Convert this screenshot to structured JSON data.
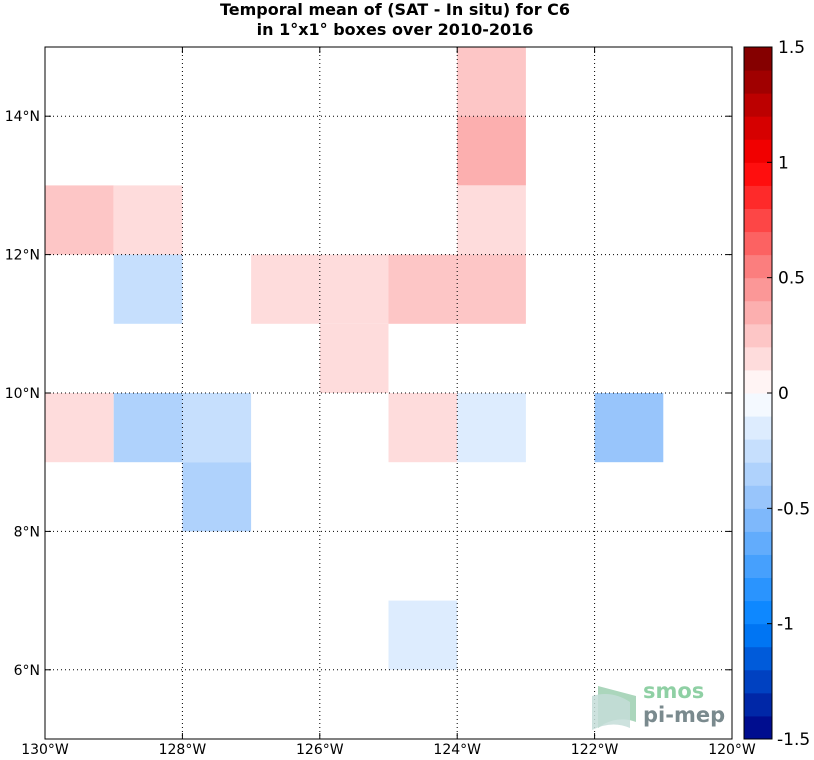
{
  "chart_data": {
    "type": "heatmap",
    "title_lines": [
      "Temporal mean of (SAT - In situ) for C6",
      "in 1°x1° boxes over 2010-2016"
    ],
    "xlim": [
      -130,
      -120
    ],
    "ylim": [
      5,
      15
    ],
    "x_ticks": [
      {
        "value": -130,
        "label": "130°W"
      },
      {
        "value": -128,
        "label": "128°W"
      },
      {
        "value": -126,
        "label": "126°W"
      },
      {
        "value": -124,
        "label": "124°W"
      },
      {
        "value": -122,
        "label": "122°W"
      },
      {
        "value": -120,
        "label": "120°W"
      }
    ],
    "y_ticks": [
      {
        "value": 6,
        "label": "6°N"
      },
      {
        "value": 8,
        "label": "8°N"
      },
      {
        "value": 10,
        "label": "10°N"
      },
      {
        "value": 12,
        "label": "12°N"
      },
      {
        "value": 14,
        "label": "14°N"
      }
    ],
    "grid": true,
    "colorbar": {
      "range": [
        -1.5,
        1.5
      ],
      "n_levels": 30,
      "ticks": [
        {
          "value": 1.5,
          "label": "1.5"
        },
        {
          "value": 1,
          "label": "1"
        },
        {
          "value": 0.5,
          "label": "0.5"
        },
        {
          "value": 0,
          "label": "0"
        },
        {
          "value": -0.5,
          "label": "-0.5"
        },
        {
          "value": -1,
          "label": "-1"
        },
        {
          "value": -1.5,
          "label": "-1.5"
        }
      ]
    },
    "cells": [
      {
        "lon": -124,
        "lat": 14,
        "value": 0.25
      },
      {
        "lon": -124,
        "lat": 13,
        "value": 0.4
      },
      {
        "lon": -130,
        "lat": 12,
        "value": 0.25
      },
      {
        "lon": -129,
        "lat": 12,
        "value": 0.15
      },
      {
        "lon": -124,
        "lat": 12,
        "value": 0.15
      },
      {
        "lon": -129,
        "lat": 11,
        "value": -0.25
      },
      {
        "lon": -127,
        "lat": 11,
        "value": 0.15
      },
      {
        "lon": -126,
        "lat": 11,
        "value": 0.15
      },
      {
        "lon": -125,
        "lat": 11,
        "value": 0.25
      },
      {
        "lon": -124,
        "lat": 11,
        "value": 0.25
      },
      {
        "lon": -126,
        "lat": 10,
        "value": 0.15
      },
      {
        "lon": -130,
        "lat": 9,
        "value": 0.15
      },
      {
        "lon": -129,
        "lat": 9,
        "value": -0.35
      },
      {
        "lon": -128,
        "lat": 9,
        "value": -0.25
      },
      {
        "lon": -125,
        "lat": 9,
        "value": 0.15
      },
      {
        "lon": -124,
        "lat": 9,
        "value": -0.15
      },
      {
        "lon": -122,
        "lat": 9,
        "value": -0.45
      },
      {
        "lon": -128,
        "lat": 8,
        "value": -0.35
      },
      {
        "lon": -125,
        "lat": 6,
        "value": -0.15
      }
    ]
  },
  "logo": {
    "line1": "smos",
    "line2": "pi-mep"
  }
}
